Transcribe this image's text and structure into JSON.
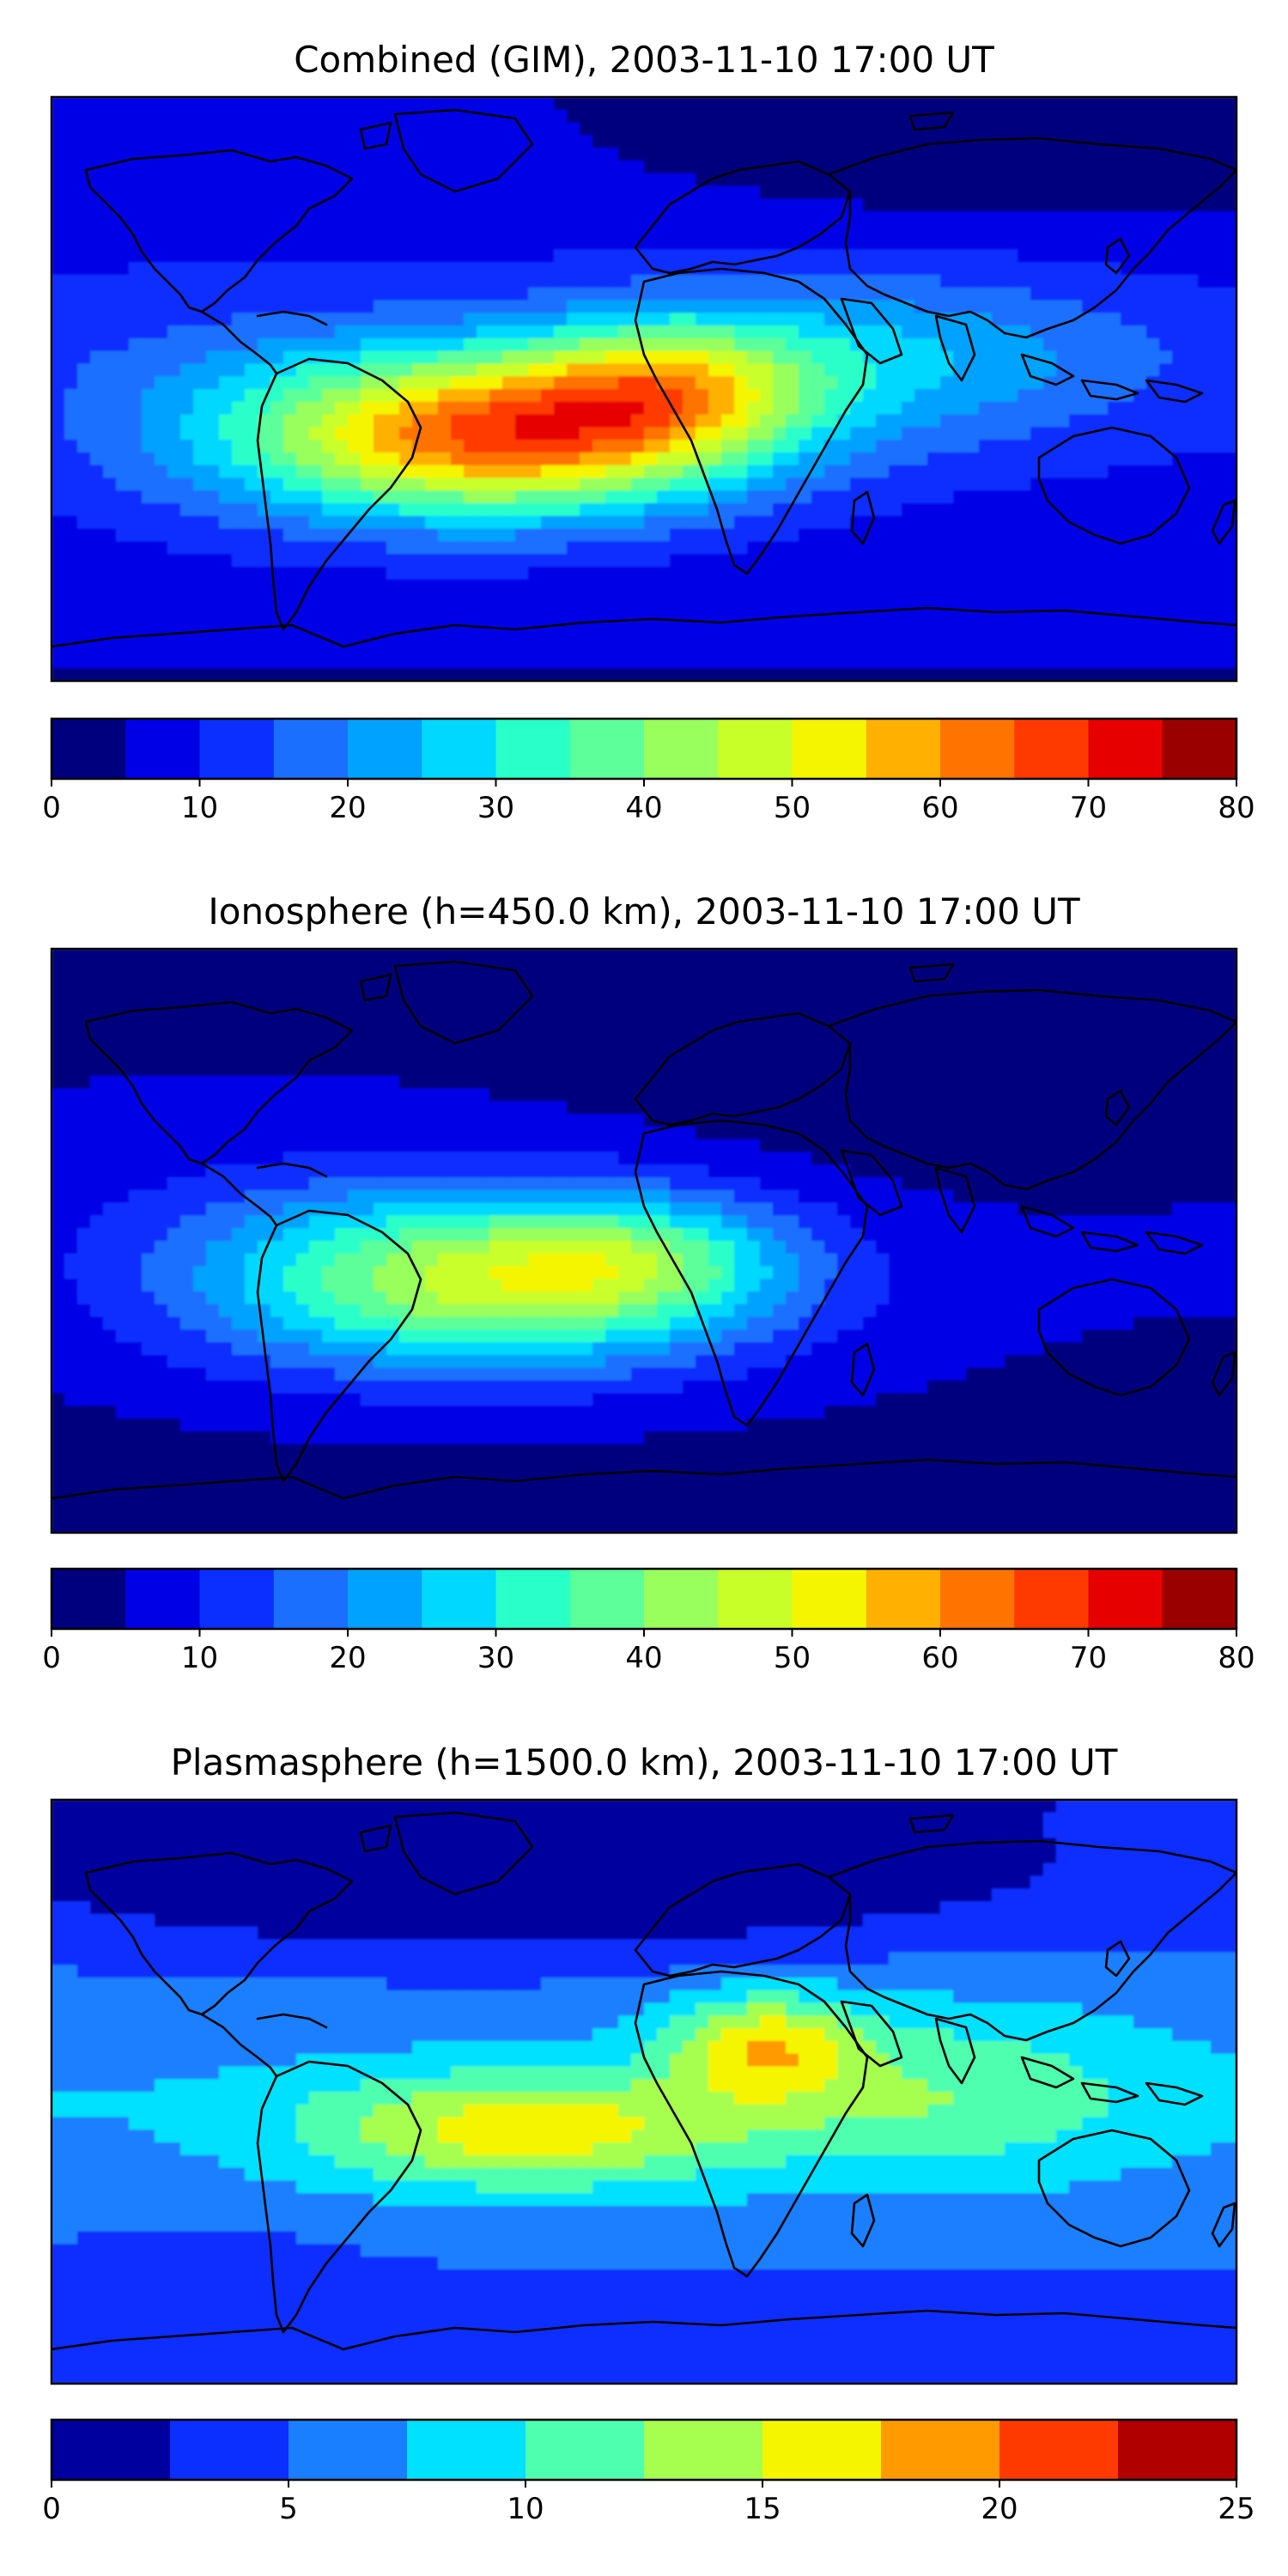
{
  "chart_data": [
    {
      "type": "heatmap",
      "title": "Combined (GIM), 2003-11-10 17:00 UT",
      "variable": "combined",
      "colorbar": {
        "min": 0,
        "max": 80,
        "step": 5,
        "ticks": [
          0,
          10,
          20,
          30,
          40,
          50,
          60,
          70,
          80
        ]
      },
      "peak_region": "South America / South Atlantic",
      "peak_value": 72,
      "colors": [
        "#00007f",
        "#0000e6",
        "#0a2fff",
        "#1a6fff",
        "#00a2ff",
        "#00d8ff",
        "#29ffc9",
        "#5cff99",
        "#99ff5c",
        "#c9ff29",
        "#f5f500",
        "#ffb000",
        "#ff7300",
        "#ff3a00",
        "#e60000",
        "#9b0000"
      ]
    },
    {
      "type": "heatmap",
      "title": "Ionosphere  (h=450.0 km), 2003-11-10 17:00 UT",
      "variable": "ionosphere",
      "colorbar": {
        "min": 0,
        "max": 80,
        "step": 5,
        "ticks": [
          0,
          10,
          20,
          30,
          40,
          50,
          60,
          70,
          80
        ]
      },
      "peak_region": "South America / South Atlantic",
      "peak_value": 52,
      "colors": [
        "#00007f",
        "#0000e6",
        "#0a2fff",
        "#1a6fff",
        "#00a2ff",
        "#00d8ff",
        "#29ffc9",
        "#5cff99",
        "#99ff5c",
        "#c9ff29",
        "#f5f500",
        "#ffb000",
        "#ff7300",
        "#ff3a00",
        "#e60000",
        "#9b0000"
      ]
    },
    {
      "type": "heatmap",
      "title": "Plasmasphere (h=1500.0 km), 2003-11-10 17:00 UT",
      "variable": "plasmasphere",
      "colorbar": {
        "min": 0,
        "max": 25,
        "step": 2.5,
        "ticks": [
          0,
          5,
          10,
          15,
          20,
          25
        ]
      },
      "peak_region": "South Atlantic / East Africa",
      "peak_value": 18,
      "colors": [
        "#00009f",
        "#0a2fff",
        "#1a7fff",
        "#00e0ff",
        "#4fffb0",
        "#a6ff4f",
        "#f5f500",
        "#ff9a00",
        "#ff3a00",
        "#b00000"
      ]
    }
  ]
}
